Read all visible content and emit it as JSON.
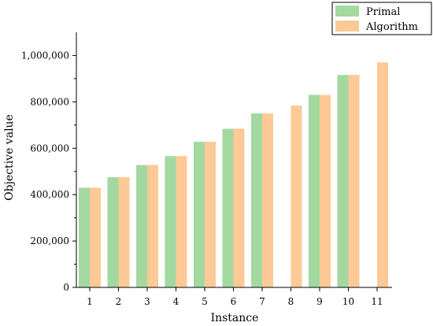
{
  "chart_data": {
    "type": "bar",
    "xlabel": "Instance",
    "ylabel": "Objective value",
    "ylim": [
      0,
      1100000
    ],
    "yticks": [
      0,
      200000,
      400000,
      600000,
      800000,
      1000000
    ],
    "ytick_labels": [
      "0",
      "200,000",
      "400,000",
      "600,000",
      "800,000",
      "1,000,000"
    ],
    "categories": [
      "1",
      "2",
      "3",
      "4",
      "5",
      "6",
      "7",
      "8",
      "9",
      "10",
      "11"
    ],
    "series": [
      {
        "name": "Primal",
        "color": "#a3d9a0",
        "values": [
          430000,
          475000,
          528000,
          566000,
          628000,
          684000,
          750000,
          null,
          830000,
          916000,
          null
        ]
      },
      {
        "name": "Algorithm",
        "color": "#fdc996",
        "values": [
          430000,
          475000,
          528000,
          566000,
          628000,
          684000,
          750000,
          784000,
          830000,
          916000,
          970000
        ]
      }
    ],
    "legend": {
      "position": "top-right",
      "entries": [
        "Primal",
        "Algorithm"
      ]
    },
    "grid": false
  }
}
